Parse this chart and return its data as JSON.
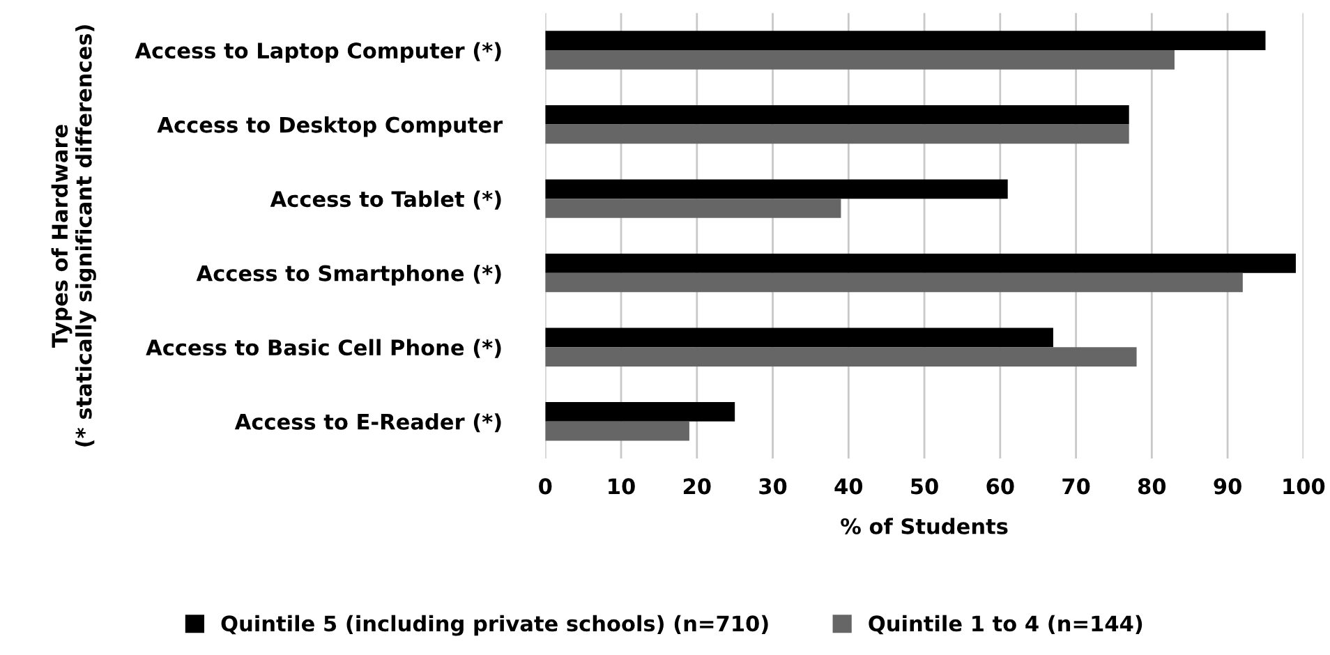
{
  "chart_data": {
    "type": "bar",
    "orientation": "horizontal",
    "xlabel": "% of Students",
    "ylabel": "Types of Hardware\n(* statically significant differences)",
    "categories": [
      "Access to Laptop Computer (*)",
      "Access to Desktop Computer",
      "Access to Tablet (*)",
      "Access to Smartphone (*)",
      "Access to Basic Cell Phone (*)",
      "Access to E-Reader (*)"
    ],
    "series": [
      {
        "name": "Quintile 5 (including private schools) (n=710)",
        "color": "#000000",
        "values": [
          95,
          77,
          61,
          99,
          67,
          25
        ]
      },
      {
        "name": "Quintile 1 to 4 (n=144)",
        "color": "#666666",
        "values": [
          83,
          77,
          39,
          92,
          78,
          19
        ]
      }
    ],
    "xlim": [
      0,
      100
    ],
    "xticks": [
      0,
      10,
      20,
      30,
      40,
      50,
      60,
      70,
      80,
      90,
      100
    ],
    "grid": "x",
    "legend": "bottom"
  }
}
